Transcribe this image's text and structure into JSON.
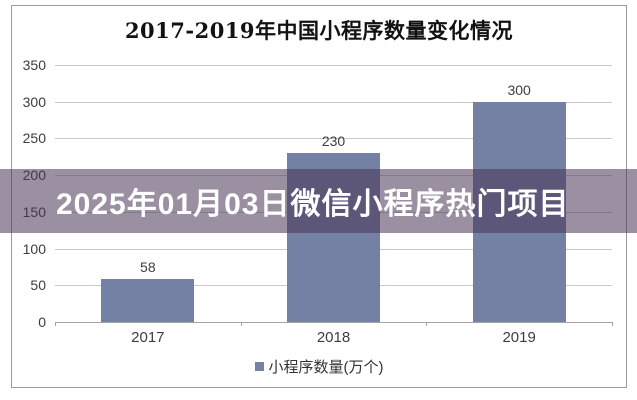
{
  "overlay": {
    "text": "2025年01月03日微信小程序热门项目",
    "bg_rgba": "rgba(72,52,84,0.55)",
    "text_color": "#ffffff"
  },
  "chart_data": {
    "type": "bar",
    "title": "2017-2019年中国小程序数量变化情况",
    "categories": [
      "2017",
      "2018",
      "2019"
    ],
    "values": [
      58,
      230,
      300
    ],
    "data_labels": [
      "58",
      "230",
      "300"
    ],
    "series_name": "小程序数量(万个)",
    "xlabel": "",
    "ylabel": "",
    "ylim": [
      0,
      350
    ],
    "yticks": [
      0,
      50,
      100,
      150,
      200,
      250,
      300,
      350
    ],
    "grid": true,
    "legend_position": "bottom",
    "bar_color": "#7480a4",
    "gridline_color": "#c9c9c9",
    "axis_color": "#a3a3a3",
    "label_color": "#3d3d3d"
  }
}
